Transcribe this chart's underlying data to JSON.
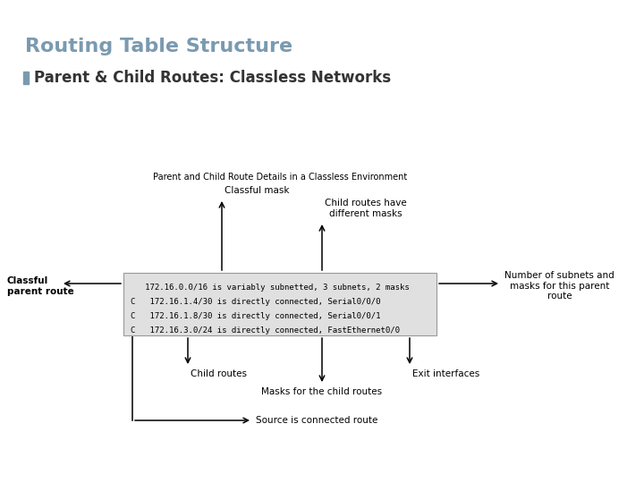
{
  "title": "Routing Table Structure",
  "title_color": "#7a9ab0",
  "subtitle_bullet_color": "#7a9ab0",
  "subtitle": "Parent & Child Routes: Classless Networks",
  "subtitle_color": "#333333",
  "bg_color": "#ffffff",
  "diagram_title": "Parent and Child Route Details in a Classless Environment",
  "box_lines": [
    "   172.16.0.0/16 is variably subnetted, 3 subnets, 2 masks",
    "C   172.16.1.4/30 is directly connected, Serial0/0/0",
    "C   172.16.1.8/30 is directly connected, Serial0/0/1",
    "C   172.16.3.0/24 is directly connected, FastEthernet0/0"
  ],
  "labels": {
    "classful_mask": "Classful mask",
    "classful_parent": "Classful\nparent route",
    "child_routes_have": "Child routes have\ndifferent masks",
    "num_subnets": "Number of subnets and\nmasks for this parent\nroute",
    "child_routes": "Child routes",
    "exit_interfaces": "Exit interfaces",
    "masks_child": "Masks for the child routes",
    "source_connected": "Source is connected route"
  }
}
